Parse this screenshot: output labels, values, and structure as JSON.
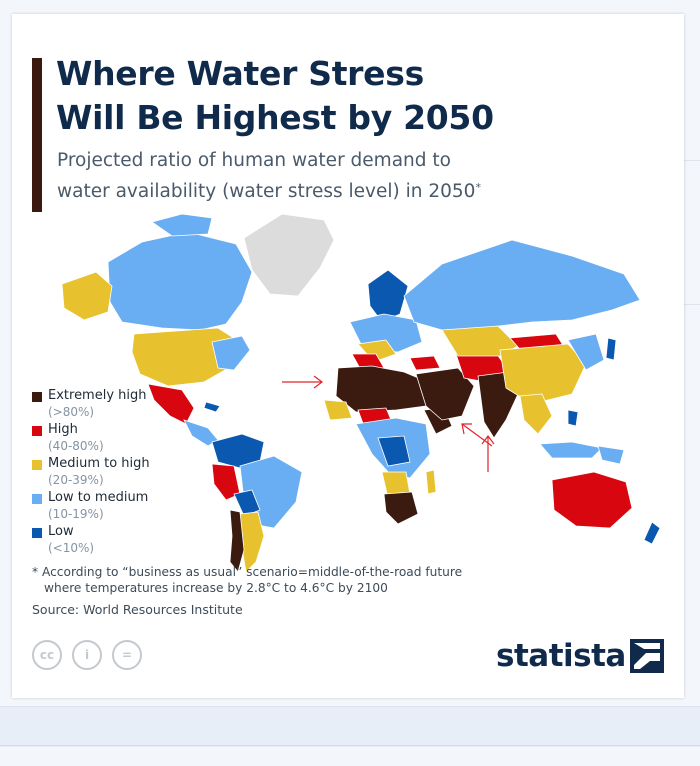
{
  "title": {
    "line1": "Where Water Stress",
    "line2": "Will Be Highest by 2050"
  },
  "subtitle": {
    "line1": "Projected ratio of human water demand to",
    "line2": "water availability (water stress level) in 2050",
    "marker": "*"
  },
  "legend": [
    {
      "label": "Extremely high",
      "range": "(>80%)",
      "color": "#3b1a10"
    },
    {
      "label": "High",
      "range": "(40-80%)",
      "color": "#d7060f"
    },
    {
      "label": "Medium to high",
      "range": "(20-39%)",
      "color": "#e8c22e"
    },
    {
      "label": "Low to medium",
      "range": "(10-19%)",
      "color": "#69aef2"
    },
    {
      "label": "Low",
      "range": "(<10%)",
      "color": "#0b58b0"
    }
  ],
  "no_data_color": "#dcdcdc",
  "annotation_color": "#e0262b",
  "footnote": {
    "line1": "* According to “business as usual” scenario=middle-of-the-road future",
    "line2": "where temperatures increase by 2.8°C to 4.6°C by 2100"
  },
  "source": "Source: World Resources Institute",
  "license_icons": [
    {
      "name": "creative-commons-icon",
      "glyph": "cc"
    },
    {
      "name": "attribution-icon",
      "glyph": "i"
    },
    {
      "name": "no-derivatives-icon",
      "glyph": "="
    }
  ],
  "brand": "statista"
}
